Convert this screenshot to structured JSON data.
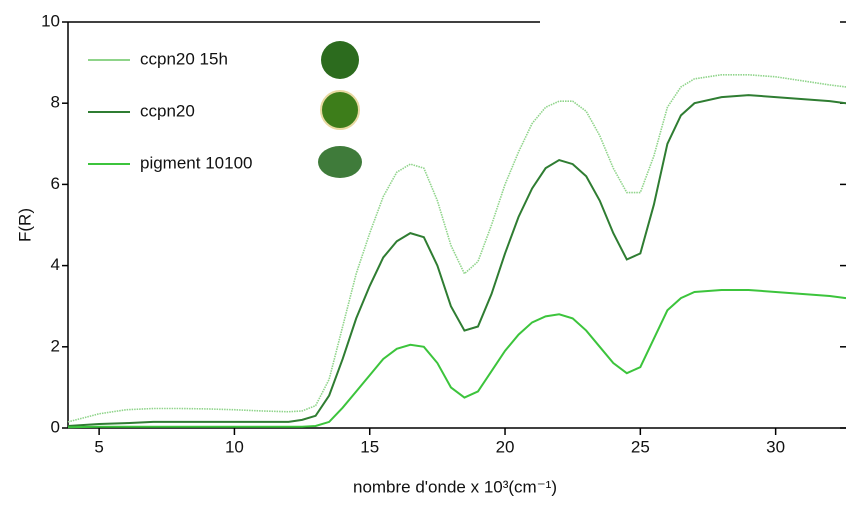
{
  "chart_data": {
    "type": "line",
    "x_label": "nombre d'onde x 10³(cm⁻¹)",
    "y_label": "F(R)",
    "x": [
      3.85,
      5,
      6,
      7,
      8,
      9,
      10,
      11,
      12,
      12.5,
      13,
      13.5,
      14,
      14.5,
      15,
      15.5,
      16,
      16.5,
      17,
      17.5,
      18,
      18.5,
      19,
      19.5,
      20,
      20.5,
      21,
      21.5,
      22,
      22.5,
      23,
      23.5,
      24,
      24.5,
      25,
      25.5,
      26,
      26.5,
      27,
      28,
      29,
      30,
      31,
      32,
      32.6
    ],
    "series": [
      {
        "name": "ccpn20 15h",
        "color": "#8fd48a",
        "values": [
          0.15,
          0.35,
          0.45,
          0.48,
          0.48,
          0.47,
          0.45,
          0.42,
          0.4,
          0.42,
          0.55,
          1.2,
          2.5,
          3.8,
          4.8,
          5.7,
          6.3,
          6.5,
          6.4,
          5.6,
          4.5,
          3.8,
          4.1,
          5.0,
          6.0,
          6.8,
          7.5,
          7.9,
          8.05,
          8.05,
          7.8,
          7.2,
          6.4,
          5.8,
          5.8,
          6.7,
          7.9,
          8.4,
          8.6,
          8.7,
          8.7,
          8.65,
          8.55,
          8.45,
          8.4
        ]
      },
      {
        "name": "ccpn20",
        "color": "#2f7d32",
        "values": [
          0.05,
          0.1,
          0.12,
          0.15,
          0.15,
          0.15,
          0.15,
          0.15,
          0.15,
          0.2,
          0.3,
          0.8,
          1.7,
          2.7,
          3.5,
          4.2,
          4.6,
          4.8,
          4.7,
          4.0,
          3.0,
          2.4,
          2.5,
          3.3,
          4.3,
          5.2,
          5.9,
          6.4,
          6.6,
          6.5,
          6.2,
          5.6,
          4.8,
          4.15,
          4.3,
          5.5,
          7.0,
          7.7,
          8.0,
          8.15,
          8.2,
          8.15,
          8.1,
          8.05,
          8.0
        ]
      },
      {
        "name": "pigment 10100",
        "color": "#3cc43c",
        "values": [
          0.02,
          0.03,
          0.03,
          0.03,
          0.03,
          0.03,
          0.03,
          0.03,
          0.03,
          0.03,
          0.05,
          0.15,
          0.5,
          0.9,
          1.3,
          1.7,
          1.95,
          2.05,
          2.0,
          1.6,
          1.0,
          0.75,
          0.9,
          1.4,
          1.9,
          2.3,
          2.6,
          2.75,
          2.8,
          2.7,
          2.4,
          2.0,
          1.6,
          1.35,
          1.5,
          2.2,
          2.9,
          3.2,
          3.35,
          3.4,
          3.4,
          3.35,
          3.3,
          3.25,
          3.2
        ]
      }
    ],
    "xlim": [
      3.85,
      32.6
    ],
    "xticks": [
      5,
      10,
      15,
      20,
      25,
      30
    ],
    "ylim": [
      0,
      10
    ],
    "yticks": [
      0,
      2,
      4,
      6,
      8,
      10
    ],
    "legend": "upper left"
  }
}
